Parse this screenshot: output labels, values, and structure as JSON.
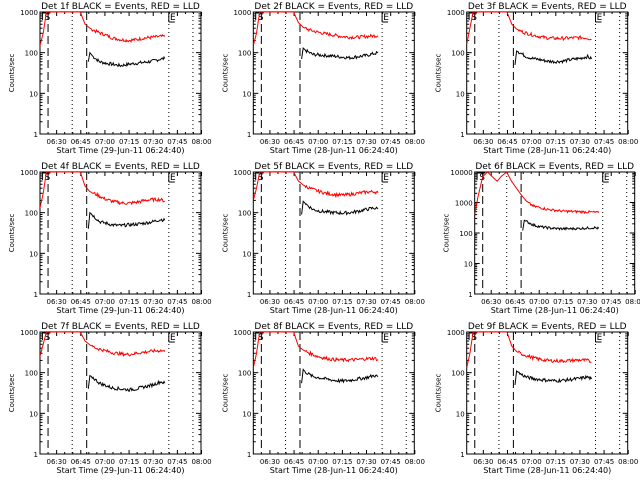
{
  "chart_data": [
    {
      "type": "line",
      "title": "Det 1f BLACK = Events, RED = LLD",
      "xlabel": "Start Time (29-Jun-11 06:24:40)",
      "ylabel": "Counts/sec",
      "yscale": "log",
      "ylim": [
        1,
        1000
      ],
      "yticks": [
        "1",
        "10",
        "100",
        "1000"
      ],
      "xlim_min": [
        -5,
        95
      ],
      "xticks": [
        "06:30",
        "06:45",
        "07:00",
        "07:15",
        "07:30",
        "07:45",
        "08:00"
      ],
      "markers": {
        "start_label": "S",
        "end_label": "E",
        "dashed_min": [
          0,
          24
        ],
        "dotted_min": [
          15,
          75,
          90
        ]
      },
      "series": [
        {
          "name": "Events",
          "color": "#000000",
          "x": [
            25,
            26,
            28,
            32,
            36,
            40,
            45,
            50,
            55,
            60,
            65,
            70,
            72.5
          ],
          "y": [
            60,
            100,
            80,
            60,
            55,
            52,
            48,
            52,
            55,
            58,
            62,
            70,
            72
          ]
        },
        {
          "name": "LLD",
          "color": "#ff0000",
          "x": [
            -5,
            -3,
            -1,
            20,
            23,
            26,
            30,
            35,
            40,
            45,
            50,
            55,
            60,
            65,
            70,
            72.5
          ],
          "y": [
            150,
            300,
            1000,
            1000,
            500,
            400,
            330,
            280,
            230,
            210,
            200,
            210,
            230,
            240,
            250,
            250
          ]
        }
      ]
    },
    {
      "type": "line",
      "title": "Det 2f BLACK = Events, RED = LLD",
      "xlabel": "Start Time (28-Jun-11 06:24:40)",
      "ylabel": "Counts/sec",
      "yscale": "log",
      "ylim": [
        1,
        1000
      ],
      "yticks": [
        "1",
        "10",
        "100",
        "1000"
      ],
      "xlim_min": [
        -5,
        95
      ],
      "xticks": [
        "06:30",
        "06:45",
        "07:00",
        "07:15",
        "07:30",
        "07:45",
        "08:00"
      ],
      "markers": {
        "start_label": "S",
        "end_label": "E",
        "dashed_min": [
          0,
          24
        ],
        "dotted_min": [
          15,
          75,
          90
        ]
      },
      "series": [
        {
          "name": "Events",
          "color": "#000000",
          "x": [
            25,
            26,
            28,
            32,
            36,
            40,
            45,
            50,
            55,
            60,
            65,
            70,
            72.5
          ],
          "y": [
            70,
            130,
            110,
            90,
            88,
            85,
            82,
            78,
            75,
            80,
            85,
            95,
            100
          ]
        },
        {
          "name": "LLD",
          "color": "#ff0000",
          "x": [
            -5,
            -3,
            -1,
            20,
            23,
            26,
            30,
            35,
            40,
            45,
            50,
            55,
            60,
            65,
            70,
            72.5
          ],
          "y": [
            150,
            300,
            1000,
            1000,
            550,
            420,
            360,
            320,
            290,
            270,
            250,
            240,
            240,
            250,
            260,
            260
          ]
        }
      ]
    },
    {
      "type": "line",
      "title": "Det 3f BLACK = Events, RED = LLD",
      "xlabel": "Start Time (28-Jun-11 06:24:40)",
      "ylabel": "Counts/sec",
      "yscale": "log",
      "ylim": [
        1,
        1000
      ],
      "yticks": [
        "1",
        "10",
        "100",
        "1000"
      ],
      "xlim_min": [
        -5,
        95
      ],
      "xticks": [
        "06:30",
        "06:45",
        "07:00",
        "07:15",
        "07:30",
        "07:45",
        "08:00"
      ],
      "markers": {
        "start_label": "S",
        "end_label": "E",
        "dashed_min": [
          0,
          24
        ],
        "dotted_min": [
          15,
          75,
          90
        ]
      },
      "series": [
        {
          "name": "Events",
          "color": "#000000",
          "x": [
            25,
            26,
            28,
            32,
            36,
            40,
            45,
            50,
            55,
            60,
            65,
            70,
            72.5
          ],
          "y": [
            50,
            110,
            100,
            80,
            72,
            68,
            62,
            60,
            62,
            68,
            72,
            80,
            70
          ]
        },
        {
          "name": "LLD",
          "color": "#ff0000",
          "x": [
            -5,
            -3,
            -1,
            20,
            23,
            26,
            30,
            35,
            40,
            45,
            50,
            55,
            60,
            65,
            70,
            72.5
          ],
          "y": [
            160,
            400,
            1000,
            1000,
            500,
            380,
            320,
            280,
            250,
            230,
            225,
            225,
            230,
            235,
            230,
            210
          ]
        }
      ]
    },
    {
      "type": "line",
      "title": "Det 4f BLACK = Events, RED = LLD",
      "xlabel": "Start Time (29-Jun-11 06:24:40)",
      "ylabel": "Counts/sec",
      "yscale": "log",
      "ylim": [
        1,
        1000
      ],
      "yticks": [
        "1",
        "10",
        "100",
        "1000"
      ],
      "xlim_min": [
        -5,
        95
      ],
      "xticks": [
        "06:30",
        "06:45",
        "07:00",
        "07:15",
        "07:30",
        "07:45",
        "08:00"
      ],
      "markers": {
        "start_label": "S",
        "end_label": "E",
        "dashed_min": [
          0,
          24
        ],
        "dotted_min": [
          15,
          75,
          90
        ]
      },
      "series": [
        {
          "name": "Events",
          "color": "#000000",
          "x": [
            25,
            26,
            28,
            32,
            36,
            40,
            45,
            50,
            55,
            60,
            65,
            70,
            72.5
          ],
          "y": [
            40,
            100,
            85,
            60,
            55,
            50,
            48,
            50,
            52,
            55,
            60,
            68,
            65
          ]
        },
        {
          "name": "LLD",
          "color": "#ff0000",
          "x": [
            -5,
            -3,
            -1,
            20,
            23,
            26,
            30,
            35,
            40,
            45,
            50,
            55,
            60,
            65,
            70,
            72.5
          ],
          "y": [
            130,
            300,
            1000,
            1000,
            450,
            330,
            280,
            220,
            190,
            175,
            170,
            180,
            200,
            210,
            210,
            190
          ]
        }
      ]
    },
    {
      "type": "line",
      "title": "Det 5f BLACK = Events, RED = LLD",
      "xlabel": "Start Time (28-Jun-11 06:24:40)",
      "ylabel": "Counts/sec",
      "yscale": "log",
      "ylim": [
        1,
        1000
      ],
      "yticks": [
        "1",
        "10",
        "100",
        "1000"
      ],
      "xlim_min": [
        -5,
        95
      ],
      "xticks": [
        "06:30",
        "06:45",
        "07:00",
        "07:15",
        "07:30",
        "07:45",
        "08:00"
      ],
      "markers": {
        "start_label": "S",
        "end_label": "E",
        "dashed_min": [
          0,
          24
        ],
        "dotted_min": [
          15,
          75,
          90
        ]
      },
      "series": [
        {
          "name": "Events",
          "color": "#000000",
          "x": [
            25,
            26,
            28,
            32,
            36,
            40,
            45,
            50,
            55,
            60,
            65,
            70,
            72.5
          ],
          "y": [
            90,
            190,
            160,
            120,
            110,
            105,
            100,
            98,
            100,
            108,
            120,
            130,
            125
          ]
        },
        {
          "name": "LLD",
          "color": "#ff0000",
          "x": [
            -5,
            -3,
            -1,
            20,
            23,
            26,
            30,
            35,
            40,
            45,
            50,
            55,
            60,
            65,
            70,
            72.5
          ],
          "y": [
            200,
            400,
            1000,
            1000,
            600,
            480,
            400,
            340,
            300,
            280,
            270,
            280,
            300,
            320,
            330,
            310
          ]
        }
      ]
    },
    {
      "type": "line",
      "title": "Det 6f BLACK = Events, RED = LLD",
      "xlabel": "Start Time (28-Jun-11 06:24:40)",
      "ylabel": "Counts/sec",
      "yscale": "log",
      "ylim": [
        1,
        10000
      ],
      "yticks": [
        "1",
        "10",
        "100",
        "1000",
        "10000"
      ],
      "xlim_min": [
        -5,
        95
      ],
      "xticks": [
        "06:30",
        "06:45",
        "07:00",
        "07:15",
        "07:30",
        "07:45",
        "08:00"
      ],
      "markers": {
        "start_label": "S",
        "end_label": "E",
        "dashed_min": [
          0,
          24
        ],
        "dotted_min": [
          15,
          75,
          90
        ]
      },
      "series": [
        {
          "name": "Events",
          "color": "#000000",
          "x": [
            25,
            26,
            28,
            32,
            36,
            40,
            45,
            50,
            55,
            60,
            65,
            70,
            72.5
          ],
          "y": [
            120,
            260,
            230,
            180,
            160,
            150,
            140,
            138,
            138,
            140,
            145,
            150,
            140
          ]
        },
        {
          "name": "LLD",
          "color": "#ff0000",
          "x": [
            -5,
            -3,
            0,
            3,
            6,
            9,
            12,
            15,
            18,
            21,
            24,
            28,
            32,
            36,
            40,
            50,
            60,
            70,
            72.5
          ],
          "y": [
            400,
            1500,
            7000,
            10000,
            7000,
            5000,
            7500,
            10000,
            5000,
            3000,
            1800,
            1000,
            750,
            680,
            600,
            520,
            500,
            480,
            460
          ]
        }
      ]
    },
    {
      "type": "line",
      "title": "Det 7f BLACK = Events, RED = LLD",
      "xlabel": "Start Time (29-Jun-11 06:24:40)",
      "ylabel": "Counts/sec",
      "yscale": "log",
      "ylim": [
        1,
        1000
      ],
      "yticks": [
        "1",
        "10",
        "100",
        "1000"
      ],
      "xlim_min": [
        -5,
        95
      ],
      "xticks": [
        "06:30",
        "06:45",
        "07:00",
        "07:15",
        "07:30",
        "07:45",
        "08:00"
      ],
      "markers": {
        "start_label": "S",
        "end_label": "E",
        "dashed_min": [
          0,
          24
        ],
        "dotted_min": [
          15,
          75,
          90
        ]
      },
      "series": [
        {
          "name": "Events",
          "color": "#000000",
          "x": [
            25,
            26,
            28,
            32,
            36,
            40,
            45,
            50,
            55,
            60,
            65,
            70,
            72.5
          ],
          "y": [
            40,
            85,
            75,
            55,
            48,
            42,
            40,
            38,
            40,
            45,
            50,
            60,
            55
          ]
        },
        {
          "name": "LLD",
          "color": "#ff0000",
          "x": [
            -5,
            -3,
            -1,
            20,
            23,
            26,
            30,
            35,
            40,
            45,
            50,
            55,
            60,
            65,
            70,
            72.5
          ],
          "y": [
            250,
            500,
            1000,
            1000,
            600,
            480,
            400,
            350,
            310,
            290,
            280,
            300,
            320,
            340,
            350,
            330
          ]
        }
      ]
    },
    {
      "type": "line",
      "title": "Det 8f BLACK = Events, RED = LLD",
      "xlabel": "Start Time (28-Jun-11 06:24:40)",
      "ylabel": "Counts/sec",
      "yscale": "log",
      "ylim": [
        1,
        1000
      ],
      "yticks": [
        "1",
        "10",
        "100",
        "1000"
      ],
      "xlim_min": [
        -5,
        95
      ],
      "xticks": [
        "06:30",
        "06:45",
        "07:00",
        "07:15",
        "07:30",
        "07:45",
        "08:00"
      ],
      "markers": {
        "start_label": "S",
        "end_label": "E",
        "dashed_min": [
          0,
          24
        ],
        "dotted_min": [
          15,
          75,
          90
        ]
      },
      "series": [
        {
          "name": "Events",
          "color": "#000000",
          "x": [
            25,
            26,
            28,
            32,
            36,
            40,
            45,
            50,
            55,
            60,
            65,
            70,
            72.5
          ],
          "y": [
            55,
            120,
            100,
            80,
            75,
            70,
            65,
            62,
            65,
            70,
            75,
            85,
            80
          ]
        },
        {
          "name": "LLD",
          "color": "#ff0000",
          "x": [
            -5,
            -3,
            -1,
            20,
            23,
            26,
            30,
            35,
            40,
            45,
            50,
            55,
            60,
            65,
            70,
            72.5
          ],
          "y": [
            130,
            300,
            1000,
            1000,
            450,
            360,
            300,
            250,
            225,
            210,
            205,
            205,
            210,
            220,
            225,
            210
          ]
        }
      ]
    },
    {
      "type": "line",
      "title": "Det 9f BLACK = Events, RED = LLD",
      "xlabel": "Start Time (28-Jun-11 06:24:40)",
      "ylabel": "Counts/sec",
      "yscale": "log",
      "ylim": [
        1,
        1000
      ],
      "yticks": [
        "1",
        "10",
        "100",
        "1000"
      ],
      "xlim_min": [
        -5,
        95
      ],
      "xticks": [
        "06:30",
        "06:45",
        "07:00",
        "07:15",
        "07:30",
        "07:45",
        "08:00"
      ],
      "markers": {
        "start_label": "S",
        "end_label": "E",
        "dashed_min": [
          0,
          24
        ],
        "dotted_min": [
          15,
          75,
          90
        ]
      },
      "series": [
        {
          "name": "Events",
          "color": "#000000",
          "x": [
            25,
            26,
            28,
            32,
            36,
            40,
            45,
            50,
            55,
            60,
            65,
            70,
            72.5
          ],
          "y": [
            50,
            110,
            95,
            78,
            72,
            68,
            65,
            63,
            65,
            68,
            72,
            78,
            70
          ]
        },
        {
          "name": "LLD",
          "color": "#ff0000",
          "x": [
            -5,
            -3,
            -1,
            20,
            23,
            26,
            30,
            35,
            40,
            45,
            50,
            55,
            60,
            65,
            70,
            72.5
          ],
          "y": [
            130,
            300,
            1000,
            1000,
            450,
            330,
            280,
            240,
            215,
            200,
            195,
            195,
            200,
            205,
            200,
            180
          ]
        }
      ]
    }
  ]
}
